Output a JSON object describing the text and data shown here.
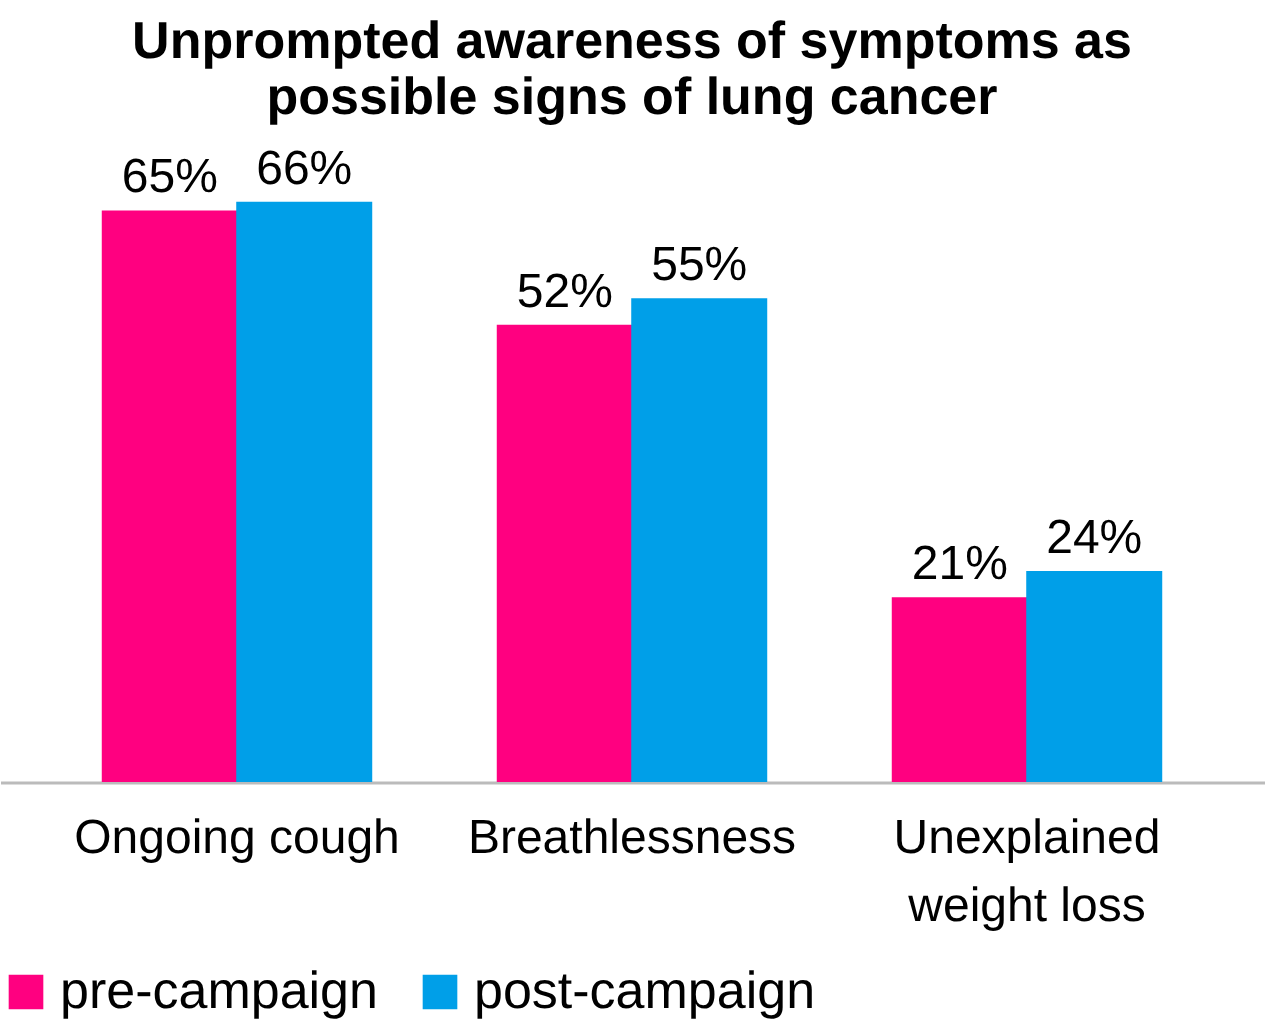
{
  "chart_data": {
    "type": "bar",
    "title": [
      "Unprompted awareness of symptoms as",
      "possible signs of lung cancer"
    ],
    "categories": [
      "Ongoing cough",
      "Breathlessness",
      "Unexplained weight loss"
    ],
    "series": [
      {
        "name": "pre-campaign",
        "color": "#ff0080",
        "values": [
          65,
          52,
          21
        ],
        "value_labels": [
          "65%",
          "52%",
          "21%"
        ]
      },
      {
        "name": "post-campaign",
        "color": "#009fe8",
        "values": [
          66,
          55,
          24
        ],
        "value_labels": [
          "66%",
          "55%",
          "24%"
        ]
      }
    ],
    "legend": "bottom",
    "grid": false
  }
}
